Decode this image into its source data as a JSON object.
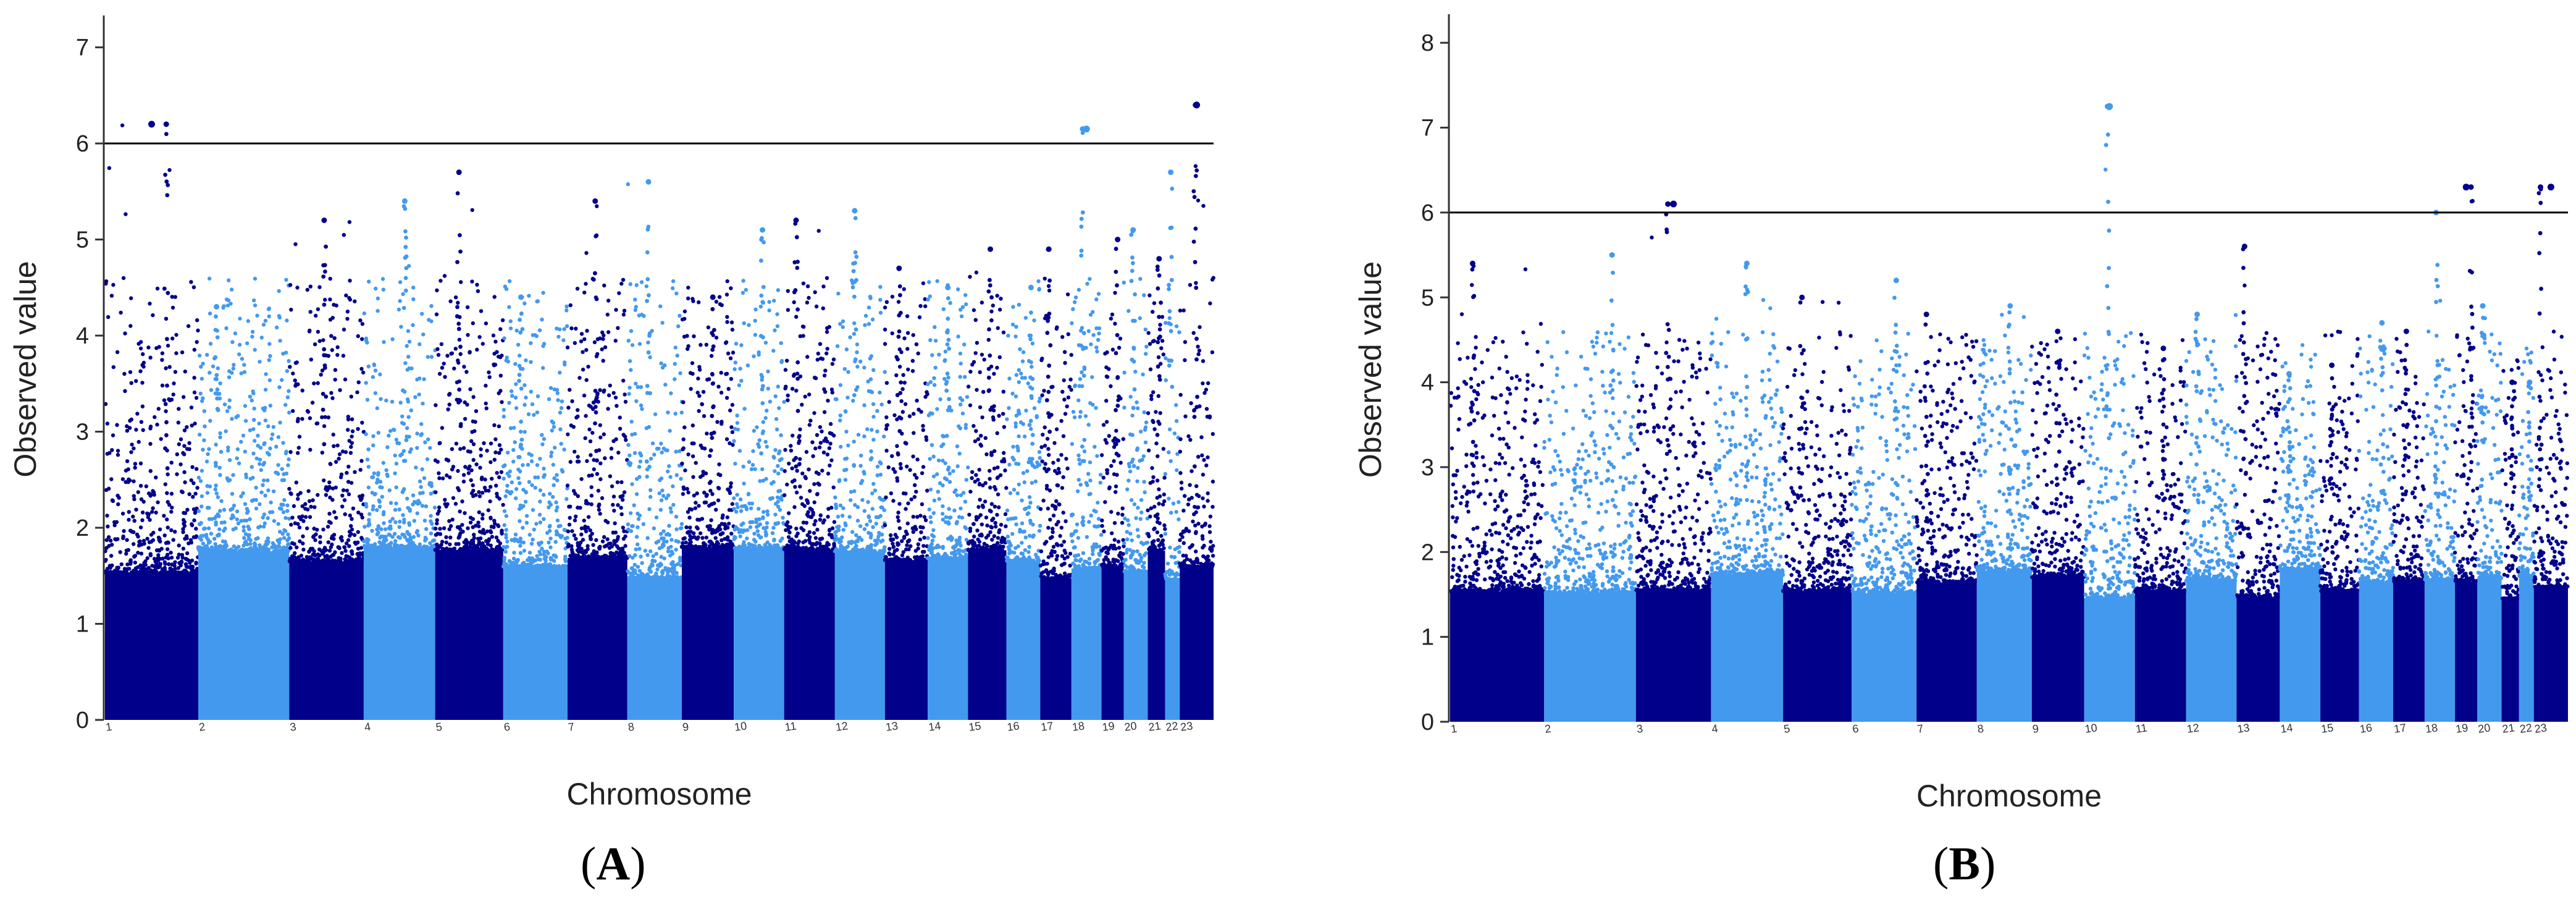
{
  "colors": {
    "dark": "#00008B",
    "light": "#4399EE",
    "axis": "#333333",
    "threshold": "#000000"
  },
  "chart_data": [
    {
      "type": "scatter",
      "subtype": "manhattan",
      "panel_label": {
        "open": "(",
        "letter": "A",
        "close": ")"
      },
      "xlabel": "Chromosome",
      "ylabel": "Observed value",
      "ylim": [
        0,
        7.3
      ],
      "yticks": [
        0,
        1,
        2,
        3,
        4,
        5,
        6,
        7
      ],
      "threshold": 6,
      "chromosomes": [
        "1",
        "2",
        "3",
        "4",
        "5",
        "6",
        "7",
        "8",
        "9",
        "10",
        "11",
        "12",
        "13",
        "14",
        "15",
        "16",
        "17",
        "18",
        "19",
        "20",
        "21",
        "22",
        "23"
      ],
      "chrom_tick_labels": [
        "1",
        "2",
        "3",
        "4",
        "5",
        "6",
        "7",
        "8",
        "9",
        "10",
        "11",
        "12",
        "13",
        "14",
        "15",
        "16",
        "17",
        "18",
        "19",
        "20",
        "21",
        "22",
        "23"
      ],
      "chrom_relative_sizes": [
        248,
        242,
        198,
        190,
        181,
        171,
        159,
        145,
        138,
        134,
        135,
        133,
        114,
        107,
        102,
        90,
        83,
        80,
        59,
        64,
        46,
        39,
        90
      ],
      "column_max_values": [
        6.2,
        4.3,
        5.2,
        5.4,
        5.7,
        4.4,
        5.4,
        5.6,
        4.4,
        5.1,
        5.2,
        5.3,
        4.7,
        4.5,
        4.9,
        4.5,
        4.9,
        6.15,
        5.0,
        5.1,
        4.8,
        5.7,
        6.4
      ],
      "noted_peaks": [
        {
          "chromosome": "1",
          "value": 6.2
        },
        {
          "chromosome": "18",
          "value": 6.15
        },
        {
          "chromosome": "23",
          "value": 6.4
        }
      ]
    },
    {
      "type": "scatter",
      "subtype": "manhattan",
      "panel_label": {
        "open": "(",
        "letter": "B",
        "close": ")"
      },
      "xlabel": "Chromosome",
      "ylabel": "Observed value",
      "ylim": [
        0,
        8.3
      ],
      "yticks": [
        0,
        1,
        2,
        3,
        4,
        5,
        6,
        7,
        8
      ],
      "threshold": 6,
      "chromosomes": [
        "1",
        "2",
        "3",
        "4",
        "5",
        "6",
        "7",
        "8",
        "9",
        "10",
        "11",
        "12",
        "13",
        "14",
        "15",
        "16",
        "17",
        "18",
        "19",
        "20",
        "21",
        "22",
        "23"
      ],
      "chrom_tick_labels": [
        "1",
        "2",
        "3",
        "4",
        "5",
        "6",
        "7",
        "8",
        "9",
        "10",
        "11",
        "12",
        "13",
        "14",
        "15",
        "16",
        "17",
        "18",
        "19",
        "20",
        "21",
        "22",
        "23"
      ],
      "chrom_relative_sizes": [
        248,
        242,
        198,
        190,
        181,
        171,
        159,
        145,
        138,
        134,
        135,
        133,
        114,
        107,
        102,
        90,
        83,
        80,
        59,
        64,
        46,
        39,
        90
      ],
      "column_max_values": [
        5.4,
        5.5,
        6.1,
        5.4,
        5.0,
        5.2,
        4.8,
        4.9,
        4.6,
        7.25,
        4.4,
        4.8,
        5.6,
        4.1,
        4.2,
        4.7,
        4.6,
        6.0,
        6.3,
        4.9,
        4.0,
        4.0,
        6.3
      ],
      "noted_peaks": [
        {
          "chromosome": "3",
          "value": 6.1
        },
        {
          "chromosome": "10",
          "value": 7.25
        },
        {
          "chromosome": "19",
          "value": 6.3
        },
        {
          "chromosome": "23",
          "value": 6.3
        }
      ]
    }
  ]
}
